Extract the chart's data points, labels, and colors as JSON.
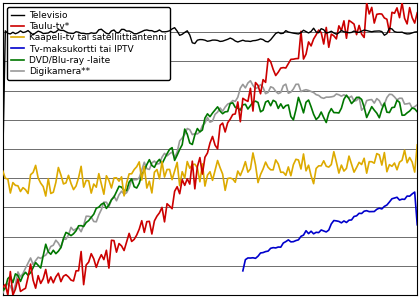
{
  "title": "",
  "background_color": "#ffffff",
  "plot_bg_color": "#ffffff",
  "legend_labels": [
    "Televisio",
    "Taulu-tv*",
    "Kaapeli-tv tai satelliittiantenni",
    "Tv-maksukortti tai IPTV",
    "DVD/Blu-ray -laite",
    "Digikamera**"
  ],
  "line_colors": [
    "#000000",
    "#cc0000",
    "#ddaa00",
    "#0000cc",
    "#007700",
    "#999999"
  ],
  "line_widths": [
    1.0,
    1.2,
    1.2,
    1.2,
    1.2,
    1.2
  ],
  "n_points": 165,
  "ylim": [
    0,
    100
  ],
  "grid_y": [
    0,
    10,
    20,
    30,
    40,
    50,
    60,
    70,
    80,
    90,
    100
  ]
}
